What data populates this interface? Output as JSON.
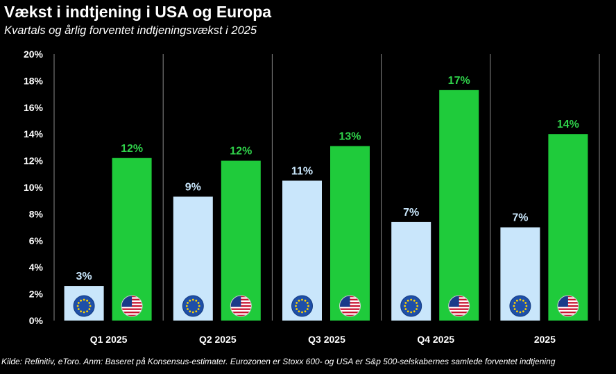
{
  "header": {
    "title": "Vækst i indtjening i USA og Europa",
    "subtitle": "Kvartals og årlig forventet indtjeningsvækst i 2025"
  },
  "footer": {
    "source": "Kilde: Refinitiv, eToro. Anm: Baseret på Konsensus-estimater. Eurozonen er Stoxx 600- og USA er S&p 500-selskabernes samlede forventet indtjening"
  },
  "colors": {
    "eu": "#c9e6fb",
    "usa": "#1fcb3b",
    "usa_label": "#2fd24a",
    "eu_label": "#c9e6fb",
    "background": "#000000",
    "axis_text": "#ffffff"
  },
  "icons": {
    "eu": "eu-flag-icon",
    "usa": "us-flag-icon"
  },
  "chart_data": {
    "type": "bar",
    "title": "Vækst i indtjening i USA og Europa",
    "subtitle": "Kvartals og årlig forventet indtjeningsvækst i 2025",
    "categories": [
      "Q1 2025",
      "Q2 2025",
      "Q3 2025",
      "Q4 2025",
      "2025"
    ],
    "series": [
      {
        "values": [
          2.6,
          9.3,
          10.5,
          7.4,
          7.0
        ],
        "labels": [
          "3%",
          "9%",
          "11%",
          "7%",
          "7%"
        ]
      },
      {
        "values": [
          12.2,
          12.0,
          13.1,
          17.3,
          14.0
        ],
        "labels": [
          "12%",
          "12%",
          "13%",
          "17%",
          "14%"
        ]
      }
    ],
    "yticks": [
      "0%",
      "2%",
      "4%",
      "6%",
      "8%",
      "10%",
      "12%",
      "14%",
      "16%",
      "18%",
      "20%"
    ],
    "ylim": [
      0,
      20
    ],
    "xlabel": "",
    "ylabel": "",
    "grid": false
  }
}
